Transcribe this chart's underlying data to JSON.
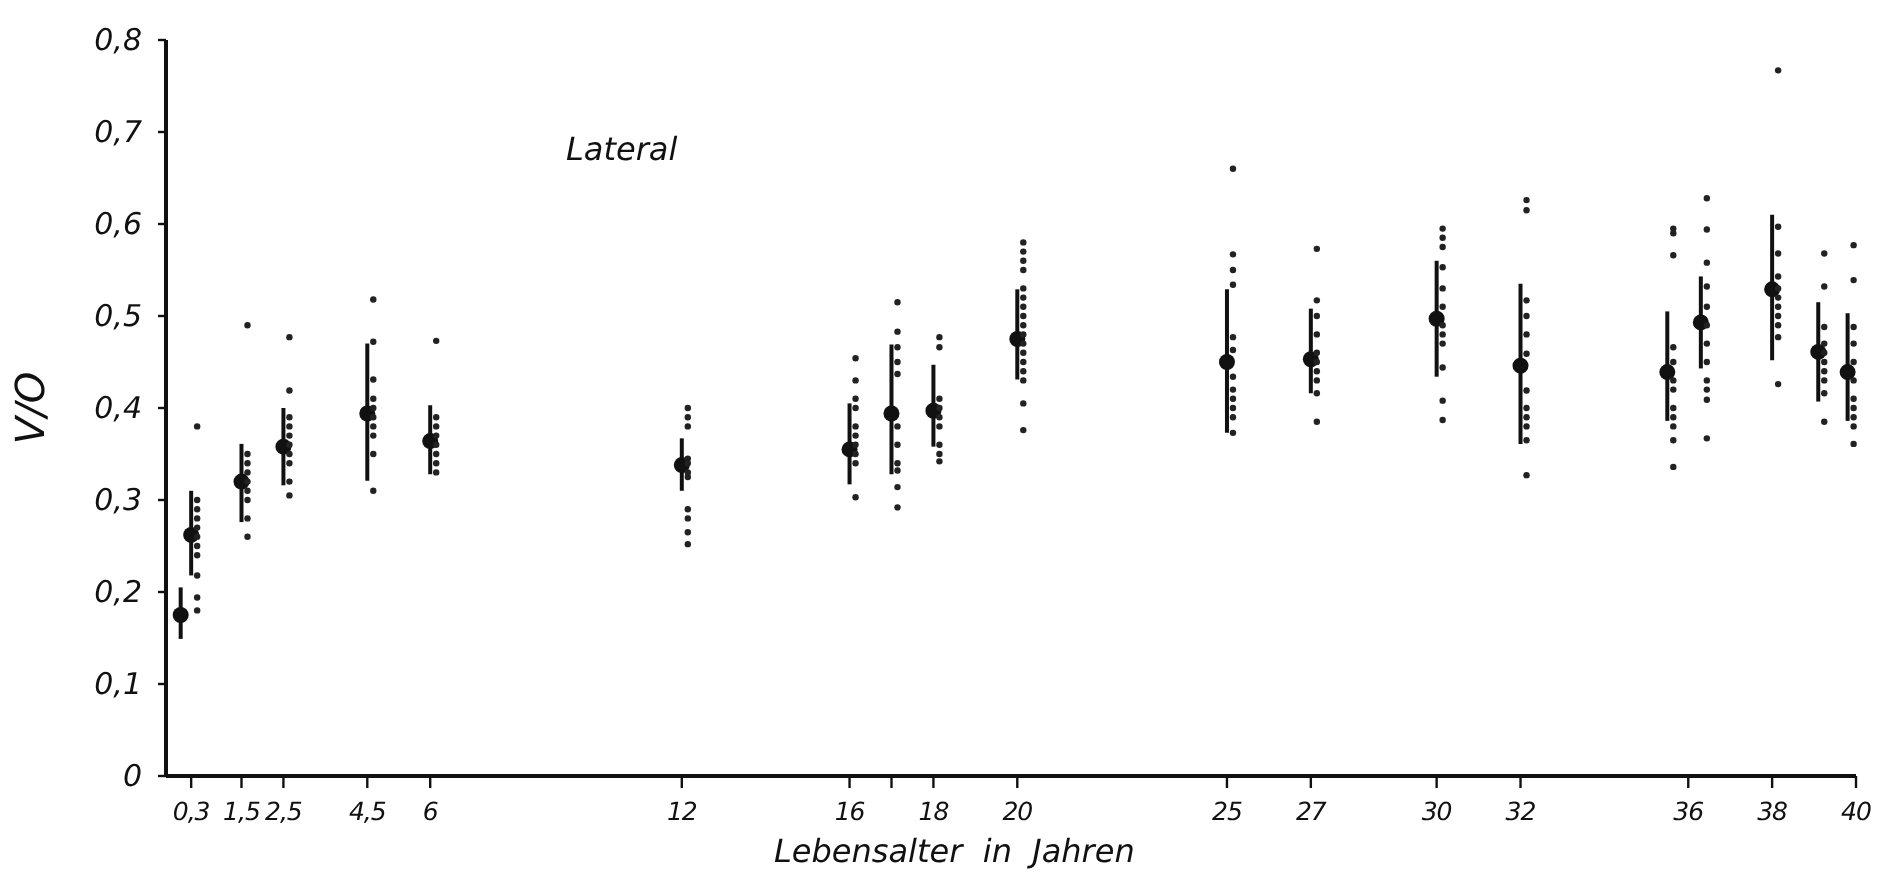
{
  "chart_data": {
    "type": "scatter",
    "xlabel": "Lebensalter  in  Jahren",
    "ylabel": "V/O",
    "annotations": [
      "Lateral"
    ],
    "xlim": [
      -0.3,
      40
    ],
    "ylim": [
      0,
      0.8
    ],
    "xticks": [
      {
        "value": 0.3,
        "label": "0,3"
      },
      {
        "value": 1.5,
        "label": "1,5"
      },
      {
        "value": 2.5,
        "label": "2,5"
      },
      {
        "value": 4.5,
        "label": "4,5"
      },
      6,
      12,
      16,
      {
        "value": 17,
        "label": null
      },
      18,
      20,
      25,
      27,
      30,
      32,
      36,
      38,
      40
    ],
    "yticks": [
      0,
      {
        "value": 0.1,
        "label": "0,1"
      },
      {
        "value": 0.2,
        "label": "0,2"
      },
      {
        "value": 0.3,
        "label": "0,3"
      },
      {
        "value": 0.4,
        "label": "0,4"
      },
      {
        "value": 0.5,
        "label": "0,5"
      },
      {
        "value": 0.6,
        "label": "0,6"
      },
      {
        "value": 0.7,
        "label": "0,7"
      },
      {
        "value": 0.8,
        "label": "0,8"
      }
    ],
    "grid": false,
    "marker": "circle",
    "series": [
      {
        "type": "scatter",
        "color": "#111111",
        "x": [
          0.05,
          0.3,
          1.5,
          2.5,
          4.5,
          6,
          12,
          16,
          17,
          18,
          20,
          25,
          27,
          30,
          32,
          35.5,
          36.3,
          38,
          39.1,
          39.8
        ],
        "values": [
          0.175,
          0.262,
          0.32,
          0.358,
          0.394,
          0.364,
          0.338,
          0.355,
          0.394,
          0.397,
          0.475,
          0.45,
          0.453,
          0.497,
          0.446,
          0.439,
          0.493,
          0.529,
          0.461,
          0.439
        ],
        "errors": [
          [
            0.149,
            0.205
          ],
          [
            0.218,
            0.31
          ],
          [
            0.276,
            0.361
          ],
          [
            0.316,
            0.4
          ],
          [
            0.321,
            0.47
          ],
          [
            0.328,
            0.403
          ],
          [
            0.31,
            0.367
          ],
          [
            0.317,
            0.405
          ],
          [
            0.328,
            0.469
          ],
          [
            0.358,
            0.447
          ],
          [
            0.431,
            0.529
          ],
          [
            0.373,
            0.529
          ],
          [
            0.416,
            0.508
          ],
          [
            0.434,
            0.56
          ],
          [
            0.361,
            0.535
          ],
          [
            0.386,
            0.505
          ],
          [
            0.443,
            0.543
          ],
          [
            0.452,
            0.61
          ],
          [
            0.407,
            0.515
          ],
          [
            0.386,
            0.503
          ]
        ]
      },
      {
        "type": "scatter",
        "color": "#222222",
        "x": [
          0.3,
          0.3,
          0.3,
          0.3,
          0.3,
          0.3,
          0.3,
          0.3,
          0.3,
          0.3,
          0.3,
          1.5,
          1.5,
          1.5,
          1.5,
          1.5,
          1.5,
          1.5,
          1.5,
          1.5,
          2.5,
          2.5,
          2.5,
          2.5,
          2.5,
          2.5,
          2.5,
          2.5,
          2.5,
          2.5,
          4.5,
          4.5,
          4.5,
          4.5,
          4.5,
          4.5,
          4.5,
          4.5,
          4.5,
          4.5,
          6,
          6,
          6,
          6,
          6,
          6,
          6,
          6,
          12,
          12,
          12,
          12,
          12,
          12,
          12,
          12,
          12,
          12,
          12,
          16,
          16,
          16,
          16,
          16,
          16,
          16,
          16,
          16,
          16,
          17,
          17,
          17,
          17,
          17,
          17,
          17,
          17,
          17,
          17,
          17,
          18,
          18,
          18,
          18,
          18,
          18,
          18,
          18,
          18,
          20,
          20,
          20,
          20,
          20,
          20,
          20,
          20,
          20,
          20,
          20,
          20,
          20,
          20,
          20,
          20,
          20,
          25,
          25,
          25,
          25,
          25,
          25,
          25,
          25,
          25,
          25,
          25,
          25,
          27,
          27,
          27,
          27,
          27,
          27,
          27,
          27,
          27,
          27,
          30,
          30,
          30,
          30,
          30,
          30,
          30,
          30,
          30,
          30,
          30,
          30,
          32,
          32,
          32,
          32,
          32,
          32,
          32,
          32,
          32,
          32,
          32,
          32,
          35.5,
          35.5,
          35.5,
          35.5,
          35.5,
          35.5,
          35.5,
          35.5,
          35.5,
          35.5,
          35.5,
          35.5,
          36.3,
          36.3,
          36.3,
          36.3,
          36.3,
          36.3,
          36.3,
          36.3,
          36.3,
          36.3,
          36.3,
          36.3,
          38,
          38,
          38,
          38,
          38,
          38,
          38,
          38,
          38,
          38,
          38,
          39.1,
          39.1,
          39.1,
          39.1,
          39.1,
          39.1,
          39.1,
          39.1,
          39.1,
          39.1,
          39.8,
          39.8,
          39.8,
          39.8,
          39.8,
          39.8,
          39.8,
          39.8,
          39.8,
          39.8,
          39.8
        ],
        "values": [
          0.38,
          0.3,
          0.29,
          0.28,
          0.27,
          0.26,
          0.25,
          0.24,
          0.218,
          0.194,
          0.18,
          0.49,
          0.35,
          0.34,
          0.33,
          0.32,
          0.31,
          0.3,
          0.28,
          0.26,
          0.477,
          0.419,
          0.39,
          0.38,
          0.37,
          0.36,
          0.35,
          0.34,
          0.32,
          0.305,
          0.518,
          0.472,
          0.431,
          0.41,
          0.4,
          0.39,
          0.38,
          0.37,
          0.35,
          0.31,
          0.473,
          0.39,
          0.38,
          0.37,
          0.36,
          0.35,
          0.34,
          0.33,
          0.4,
          0.39,
          0.38,
          0.345,
          0.34,
          0.33,
          0.325,
          0.29,
          0.28,
          0.265,
          0.252,
          0.454,
          0.43,
          0.41,
          0.4,
          0.38,
          0.37,
          0.36,
          0.35,
          0.34,
          0.303,
          0.515,
          0.483,
          0.466,
          0.45,
          0.437,
          0.38,
          0.36,
          0.34,
          0.332,
          0.314,
          0.292,
          0.477,
          0.466,
          0.41,
          0.4,
          0.39,
          0.38,
          0.36,
          0.35,
          0.342,
          0.58,
          0.57,
          0.56,
          0.55,
          0.53,
          0.52,
          0.51,
          0.5,
          0.49,
          0.48,
          0.47,
          0.46,
          0.45,
          0.44,
          0.43,
          0.405,
          0.376,
          0.66,
          0.567,
          0.55,
          0.534,
          0.477,
          0.463,
          0.434,
          0.42,
          0.41,
          0.4,
          0.39,
          0.373,
          0.573,
          0.517,
          0.5,
          0.48,
          0.46,
          0.45,
          0.44,
          0.43,
          0.416,
          0.385,
          0.595,
          0.585,
          0.575,
          0.553,
          0.53,
          0.51,
          0.49,
          0.48,
          0.47,
          0.444,
          0.408,
          0.387,
          0.626,
          0.615,
          0.517,
          0.5,
          0.48,
          0.459,
          0.419,
          0.4,
          0.39,
          0.38,
          0.365,
          0.327,
          0.595,
          0.59,
          0.566,
          0.466,
          0.45,
          0.43,
          0.42,
          0.4,
          0.39,
          0.38,
          0.365,
          0.336,
          0.628,
          0.594,
          0.558,
          0.532,
          0.51,
          0.49,
          0.47,
          0.45,
          0.43,
          0.42,
          0.409,
          0.367,
          0.767,
          0.597,
          0.568,
          0.543,
          0.53,
          0.52,
          0.51,
          0.5,
          0.49,
          0.477,
          0.426,
          0.568,
          0.532,
          0.488,
          0.47,
          0.46,
          0.45,
          0.44,
          0.43,
          0.416,
          0.385,
          0.577,
          0.539,
          0.488,
          0.47,
          0.45,
          0.43,
          0.41,
          0.4,
          0.39,
          0.38,
          0.361
        ]
      }
    ]
  }
}
